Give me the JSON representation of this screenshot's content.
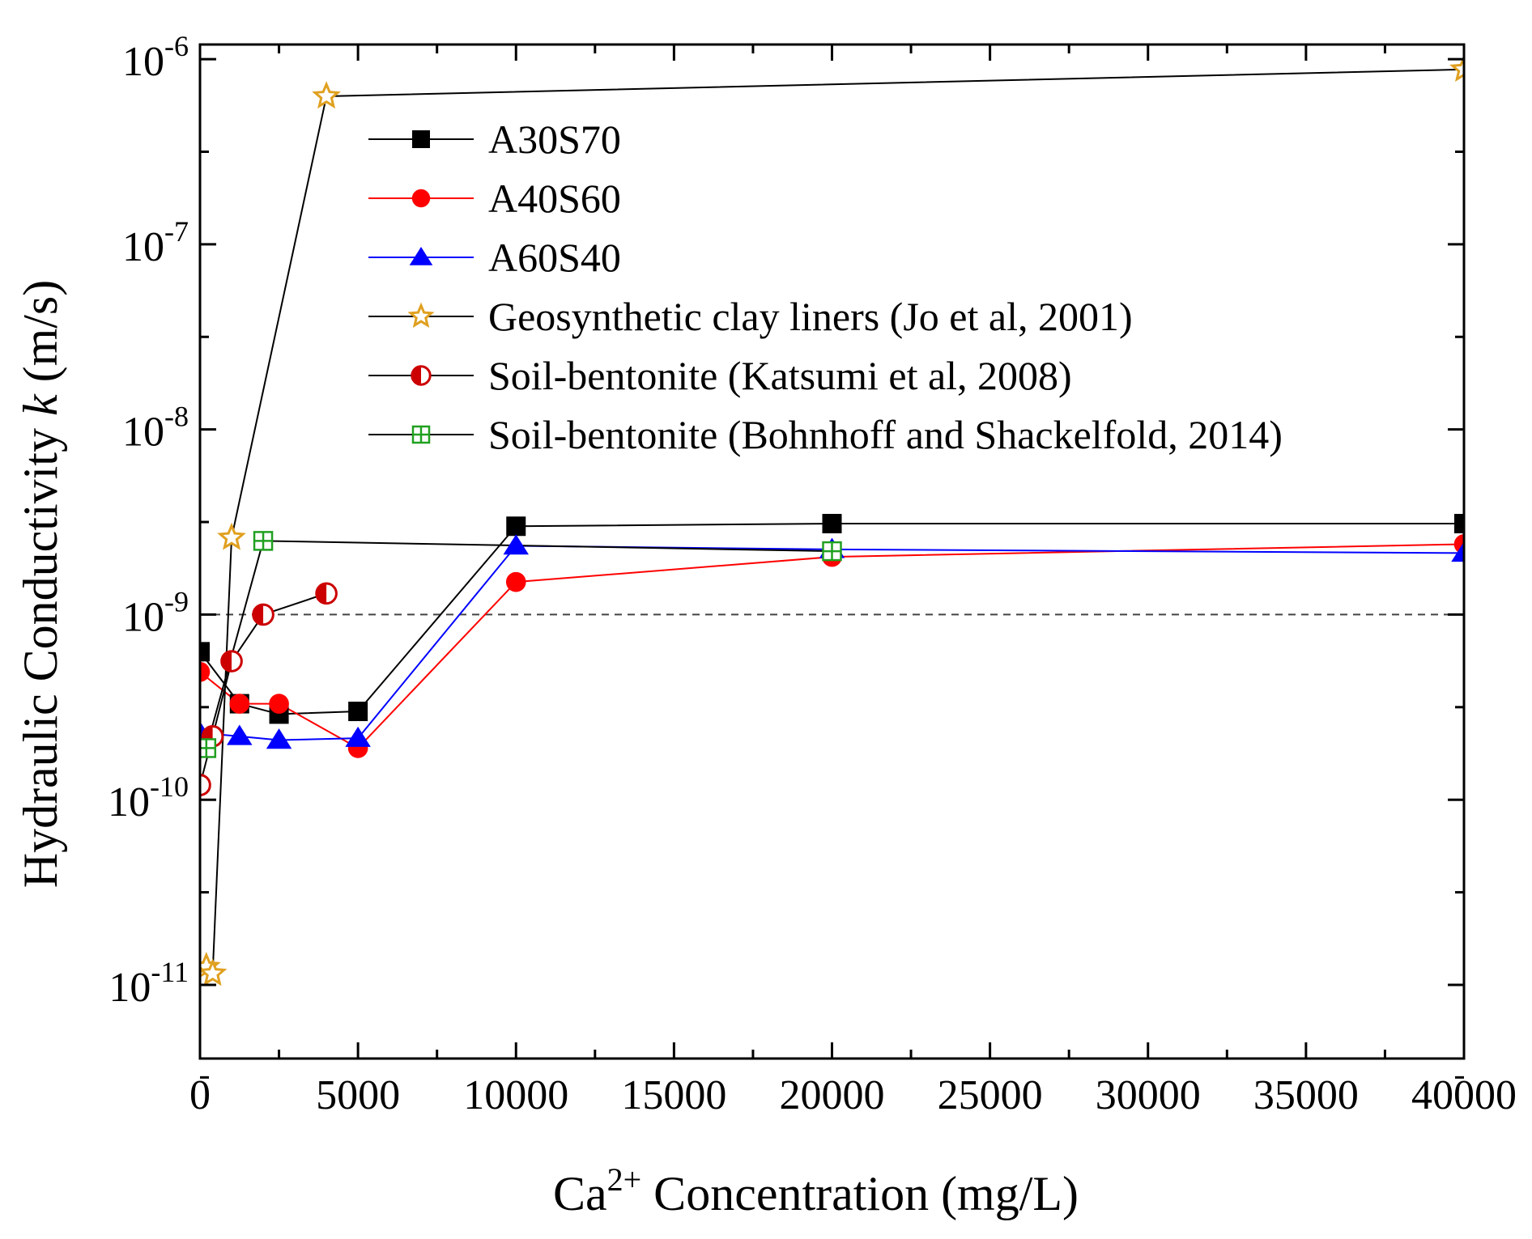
{
  "chart_data": {
    "type": "scatter",
    "xlabel": "Ca2+ Concentration (mg/L)",
    "xlabel_parts": {
      "base": "Ca",
      "sup": "2+",
      "rest": " Concentration (mg/L)"
    },
    "ylabel": "Hydraulic Conductivity k (m/s)",
    "ylabel_parts": {
      "pre": "Hydraulic Conductivity ",
      "italic": "k",
      "post": " (m/s)"
    },
    "xlim": [
      0,
      40000
    ],
    "ylim": [
      4e-12,
      1.2e-06
    ],
    "yscale": "log",
    "xticks": [
      "0",
      "5000",
      "10000",
      "15000",
      "20000",
      "25000",
      "30000",
      "35000",
      "40000"
    ],
    "xtick_values": [
      0,
      5000,
      10000,
      15000,
      20000,
      25000,
      30000,
      35000,
      40000
    ],
    "yticks": [
      {
        "value": 1e-06,
        "base": "10",
        "exp": "-6"
      },
      {
        "value": 1e-07,
        "base": "10",
        "exp": "-7"
      },
      {
        "value": 1e-08,
        "base": "10",
        "exp": "-8"
      },
      {
        "value": 1e-09,
        "base": "10",
        "exp": "-9"
      },
      {
        "value": 1e-10,
        "base": "10",
        "exp": "-10"
      },
      {
        "value": 1e-11,
        "base": "10",
        "exp": "-11"
      }
    ],
    "reference_line": {
      "y": 1e-09,
      "style": "dashed"
    },
    "legend_position": "top-left",
    "series": [
      {
        "name": "A30S70",
        "color": "#000000",
        "marker": "square-filled",
        "line_color": "#000000",
        "points": [
          [
            0,
            6.3e-10
          ],
          [
            1250,
            3.3e-10
          ],
          [
            2500,
            2.9e-10
          ],
          [
            5000,
            3e-10
          ],
          [
            10000,
            3e-09
          ],
          [
            20000,
            3.1e-09
          ],
          [
            40000,
            3.1e-09
          ]
        ]
      },
      {
        "name": "A40S60",
        "color": "#ff0000",
        "marker": "circle-filled",
        "line_color": "#ff0000",
        "points": [
          [
            0,
            4.9e-10
          ],
          [
            1250,
            3.3e-10
          ],
          [
            2500,
            3.3e-10
          ],
          [
            5000,
            1.9e-10
          ],
          [
            10000,
            1.5e-09
          ],
          [
            20000,
            2.05e-09
          ],
          [
            40000,
            2.4e-09
          ]
        ]
      },
      {
        "name": "A60S40",
        "color": "#0000ff",
        "marker": "triangle-filled",
        "line_color": "#0000ff",
        "points": [
          [
            0,
            2.3e-10
          ],
          [
            1250,
            2.2e-10
          ],
          [
            2500,
            2.1e-10
          ],
          [
            5000,
            2.15e-10
          ],
          [
            10000,
            2.35e-09
          ],
          [
            20000,
            2.25e-09
          ],
          [
            40000,
            2.15e-09
          ]
        ]
      },
      {
        "name": "Geosynthetic clay liners (Jo et al, 2001)",
        "color": "#e0a020",
        "marker": "star-open",
        "line_color": "#000000",
        "points": [
          [
            200,
            1.25e-11
          ],
          [
            400,
            1.15e-11
          ],
          [
            1000,
            2.6e-09
          ],
          [
            4000,
            6.3e-07
          ],
          [
            40000,
            8.8e-07
          ]
        ]
      },
      {
        "name": "Soil-bentonite (Katsumi et al, 2008)",
        "color": "#cc0000",
        "marker": "circle-half",
        "line_color": "#000000",
        "points": [
          [
            0,
            1.2e-10
          ],
          [
            400,
            2.2e-10
          ],
          [
            1000,
            5.6e-10
          ],
          [
            2000,
            1e-09
          ],
          [
            4000,
            1.3e-09
          ]
        ]
      },
      {
        "name": "Soil-bentonite (Bohnhoff and Shackelfold, 2014)",
        "color": "#20a020",
        "marker": "square-cross",
        "line_color": "#000000",
        "points": [
          [
            200,
            1.9e-10
          ],
          [
            2000,
            2.5e-09
          ],
          [
            20000,
            2.2e-09
          ]
        ]
      }
    ]
  }
}
